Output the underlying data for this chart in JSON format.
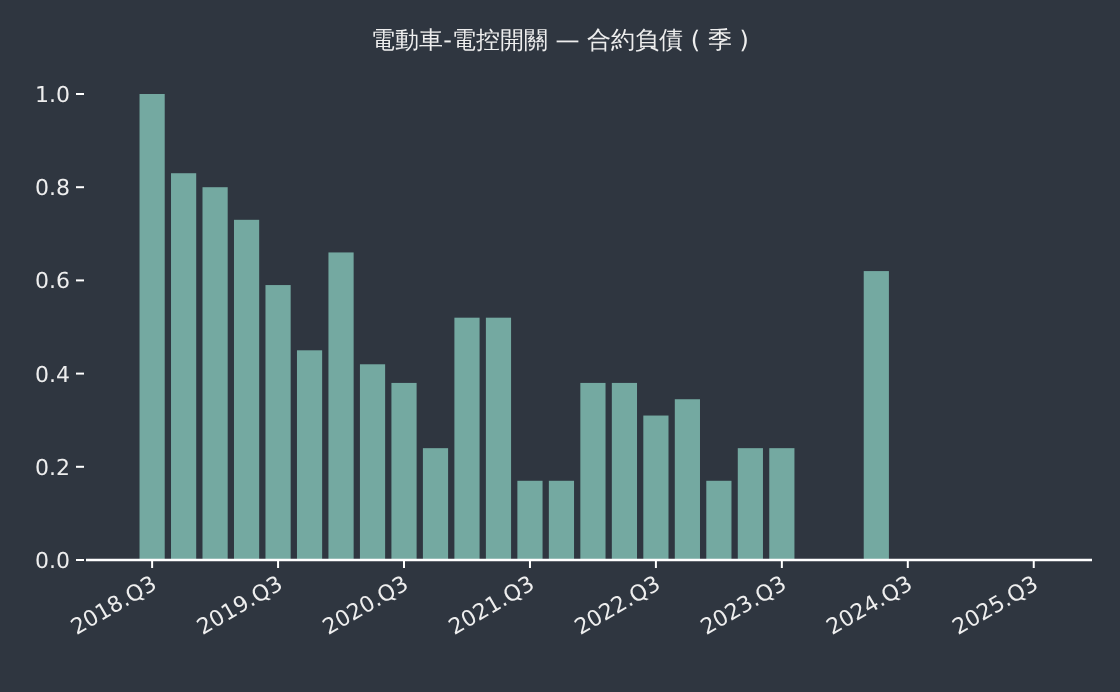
{
  "chart_data": {
    "type": "bar",
    "title": "電動車-電控開關 — 合約負債 ( 季 )",
    "categories": [
      "2018.Q3",
      null,
      null,
      null,
      "2019.Q3",
      null,
      null,
      null,
      "2020.Q3",
      null,
      null,
      null,
      "2021.Q3",
      null,
      null,
      null,
      "2022.Q3",
      null,
      null,
      null,
      "2023.Q3",
      null,
      null,
      null,
      "2024.Q3",
      null,
      null,
      null,
      "2025.Q3"
    ],
    "values": [
      1.0,
      0.83,
      0.8,
      0.73,
      0.59,
      0.45,
      0.66,
      0.42,
      0.38,
      0.24,
      0.52,
      0.52,
      0.17,
      0.17,
      0.38,
      0.38,
      0.31,
      0.345,
      0.17,
      0.24,
      0.24,
      null,
      null,
      0.62,
      null,
      null,
      null,
      null,
      null
    ],
    "color": "#74a9a1",
    "ylim": [
      0,
      1.0
    ],
    "yticks": [
      {
        "value": 0,
        "label": "0.0"
      },
      {
        "value": 0.2,
        "label": "0.2"
      },
      {
        "value": 0.4,
        "label": "0.4"
      },
      {
        "value": 0.6,
        "label": "0.6"
      },
      {
        "value": 0.8,
        "label": "0.8"
      },
      {
        "value": 1.0,
        "label": "1.0"
      }
    ],
    "grid": false
  }
}
